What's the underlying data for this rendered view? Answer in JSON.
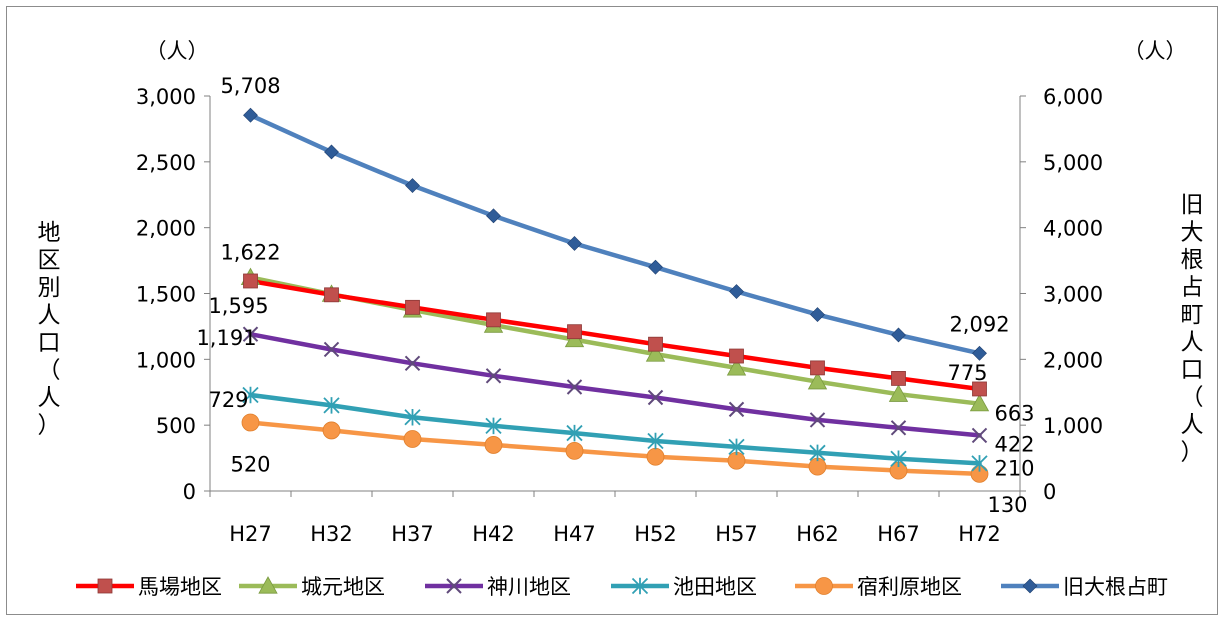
{
  "chart_data": {
    "type": "line",
    "categories": [
      "H27",
      "H32",
      "H37",
      "H42",
      "H47",
      "H52",
      "H57",
      "H62",
      "H67",
      "H72"
    ],
    "y_left": {
      "label": "地区別人口（人）",
      "unit": "（人）",
      "range": [
        0,
        3000
      ],
      "ticks": [
        "0",
        "500",
        "1,000",
        "1,500",
        "2,000",
        "2,500",
        "3,000"
      ]
    },
    "y_right": {
      "label": "旧大根占町人口（人）",
      "unit": "（人）",
      "range": [
        0,
        6000
      ],
      "ticks": [
        "0",
        "1,000",
        "2,000",
        "3,000",
        "4,000",
        "5,000",
        "6,000"
      ]
    },
    "grid": false,
    "legend": "bottom",
    "series": [
      {
        "name": "馬場地区",
        "axis": "left",
        "color": "#ff0000",
        "marker": "square",
        "marker_color": "#c0504d",
        "values": [
          1595,
          1490,
          1395,
          1300,
          1210,
          1115,
          1025,
          935,
          855,
          775
        ]
      },
      {
        "name": "城元地区",
        "axis": "left",
        "color": "#9bbb59",
        "marker": "triangle",
        "marker_color": "#9bbb59",
        "values": [
          1622,
          1495,
          1375,
          1260,
          1150,
          1040,
          935,
          830,
          735,
          663
        ]
      },
      {
        "name": "神川地区",
        "axis": "left",
        "color": "#7030a0",
        "marker": "x",
        "marker_color": "#604a7b",
        "values": [
          1191,
          1075,
          970,
          875,
          790,
          710,
          620,
          540,
          480,
          422
        ]
      },
      {
        "name": "池田地区",
        "axis": "left",
        "color": "#31a0b4",
        "marker": "asterisk",
        "marker_color": "#31a0b4",
        "values": [
          729,
          650,
          560,
          495,
          440,
          380,
          335,
          290,
          245,
          210
        ]
      },
      {
        "name": "宿利原地区",
        "axis": "left",
        "color": "#f79646",
        "marker": "circle",
        "marker_color": "#f79646",
        "values": [
          520,
          460,
          395,
          350,
          305,
          260,
          230,
          185,
          155,
          130
        ]
      },
      {
        "name": "旧大根占町",
        "axis": "right",
        "color": "#4f81bd",
        "marker": "diamond",
        "marker_color": "#2f5c98",
        "values": [
          5708,
          5150,
          4640,
          4180,
          3760,
          3400,
          3030,
          2680,
          2370,
          2092
        ]
      }
    ],
    "data_labels": [
      {
        "text": "5,708",
        "series": 5,
        "index": 0
      },
      {
        "text": "2,092",
        "series": 5,
        "index": 9
      },
      {
        "text": "1,622",
        "series": 1,
        "index": 0
      },
      {
        "text": "1,595",
        "series": 0,
        "index": 0
      },
      {
        "text": "1,191",
        "series": 2,
        "index": 0
      },
      {
        "text": "729",
        "series": 3,
        "index": 0
      },
      {
        "text": "520",
        "series": 4,
        "index": 0
      },
      {
        "text": "775",
        "series": 0,
        "index": 9
      },
      {
        "text": "663",
        "series": 1,
        "index": 9
      },
      {
        "text": "422",
        "series": 2,
        "index": 9
      },
      {
        "text": "210",
        "series": 3,
        "index": 9
      },
      {
        "text": "130",
        "series": 4,
        "index": 9
      }
    ]
  }
}
